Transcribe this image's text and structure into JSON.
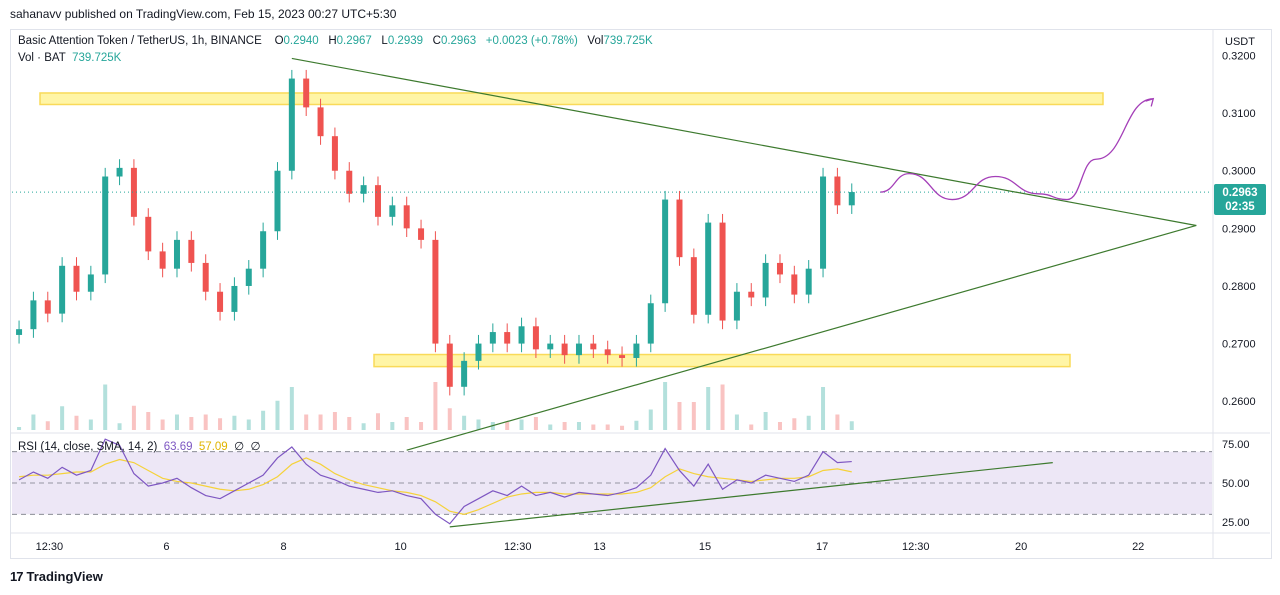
{
  "header": {
    "publisher_line": "sahanavv published on TradingView.com, Feb 15, 2023 00:27 UTC+5:30"
  },
  "legend": {
    "symbol": "Basic Attention Token / TetherUS, 1h, BINANCE",
    "o_label": "O",
    "o_value": "0.2940",
    "h_label": "H",
    "h_value": "0.2967",
    "l_label": "L",
    "l_value": "0.2939",
    "c_label": "C",
    "c_value": "0.2963",
    "change": "+0.0023 (+0.78%)",
    "vol_label": "Vol",
    "vol_value": "739.725K"
  },
  "vol_legend": {
    "label": "Vol · BAT",
    "value": "739.725K"
  },
  "rsi_legend": {
    "label": "RSI (14, close, SMA, 14, 2)",
    "rsi": "63.69",
    "sma": "57.09",
    "extra1": "∅",
    "extra2": "∅"
  },
  "price_badge": {
    "price": "0.2963",
    "countdown": "02:35"
  },
  "footer": {
    "brand": "TradingView",
    "logo_text": "17"
  },
  "colors": {
    "up": "#26a69a",
    "down": "#ef5350",
    "trendline": "#3d7a2e",
    "zone_fill": "#fff59d",
    "zone_stroke": "#f9d648",
    "projection": "#a43fb8",
    "rsi_line": "#7e57c2",
    "rsi_sma": "#f5d23a",
    "rsi_band": "#ede7f6"
  },
  "chart_data": [
    {
      "type": "candlestick",
      "currency": "USDT",
      "ylim": [
        0.255,
        0.322
      ],
      "yticks": [
        "0.3200",
        "0.3100",
        "0.3000",
        "0.2900",
        "0.2800",
        "0.2700",
        "0.2600"
      ],
      "ytick_values": [
        0.32,
        0.31,
        0.3,
        0.29,
        0.28,
        0.27,
        0.26
      ],
      "xticks": [
        "12:30",
        "6",
        "8",
        "10",
        "12:30",
        "13",
        "15",
        "17",
        "12:30",
        "20",
        "22"
      ],
      "last_price": 0.2963,
      "price_path": [
        0.2725,
        0.2775,
        0.2752,
        0.2835,
        0.279,
        0.282,
        0.299,
        0.3005,
        0.292,
        0.286,
        0.283,
        0.288,
        0.284,
        0.279,
        0.2755,
        0.28,
        0.283,
        0.2895,
        0.3,
        0.316,
        0.311,
        0.306,
        0.3,
        0.296,
        0.2975,
        0.292,
        0.294,
        0.29,
        0.288,
        0.27,
        0.2625,
        0.267,
        0.27,
        0.272,
        0.27,
        0.273,
        0.269,
        0.27,
        0.268,
        0.27,
        0.269,
        0.268,
        0.2675,
        0.27,
        0.277,
        0.295,
        0.285,
        0.275,
        0.291,
        0.274,
        0.279,
        0.278,
        0.284,
        0.282,
        0.2785,
        0.283,
        0.299,
        0.294,
        0.2963
      ],
      "zones": [
        {
          "top": 0.3135,
          "bottom": 0.3115
        },
        {
          "top": 0.2681,
          "bottom": 0.266
        }
      ],
      "trendlines": [
        {
          "from_index": 19,
          "from_price": 0.3195,
          "to_index": 82,
          "to_price": 0.2905
        },
        {
          "from_index": 27,
          "from_price": 0.2515,
          "to_index": 82,
          "to_price": 0.2905
        }
      ],
      "projection": [
        [
          60,
          0.2963
        ],
        [
          62,
          0.2995
        ],
        [
          65,
          0.295
        ],
        [
          68,
          0.299
        ],
        [
          71,
          0.296
        ],
        [
          73,
          0.295
        ],
        [
          75,
          0.302
        ],
        [
          79,
          0.3125
        ]
      ]
    },
    {
      "type": "line",
      "name": "RSI (14, close, SMA, 14, 2)",
      "ylim": [
        20,
        80
      ],
      "yticks": [
        "75.00",
        "50.00",
        "25.00"
      ],
      "ytick_values": [
        75,
        50,
        25
      ],
      "levels": [
        70,
        50,
        30
      ],
      "rsi": [
        52,
        57,
        53,
        60,
        55,
        58,
        78,
        74,
        56,
        48,
        50,
        53,
        47,
        42,
        40,
        45,
        50,
        55,
        66,
        73,
        62,
        55,
        52,
        48,
        46,
        44,
        45,
        42,
        40,
        30,
        24,
        35,
        40,
        45,
        42,
        48,
        42,
        44,
        41,
        44,
        43,
        42,
        44,
        47,
        55,
        72,
        58,
        48,
        62,
        46,
        52,
        50,
        55,
        53,
        51,
        55,
        70,
        63,
        63.69
      ],
      "sma": [
        54,
        55,
        55,
        56,
        57,
        57,
        62,
        65,
        63,
        58,
        53,
        51,
        50,
        48,
        46,
        45,
        46,
        49,
        54,
        62,
        66,
        62,
        56,
        52,
        49,
        47,
        45,
        44,
        42,
        38,
        32,
        30,
        33,
        37,
        41,
        43,
        44,
        44,
        43,
        43,
        43,
        43,
        43,
        44,
        47,
        54,
        59,
        56,
        54,
        53,
        52,
        51,
        52,
        53,
        53,
        54,
        58,
        59,
        57.09
      ],
      "trendline": {
        "from_index": 30,
        "from_value": 22,
        "to_index": 72,
        "to_value": 63
      }
    }
  ]
}
